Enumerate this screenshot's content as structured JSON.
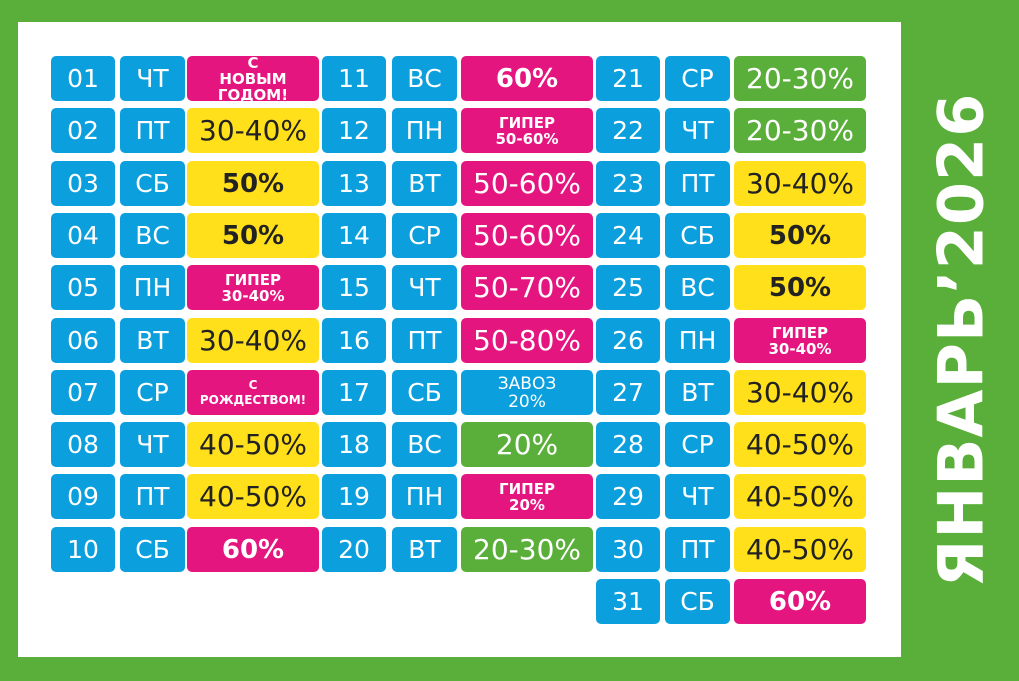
{
  "title": "ЯНВАРЬ’2026",
  "colors": {
    "blue": "#0c9fdd",
    "yellow": "#ffe01b",
    "pink": "#e5157f",
    "green": "#5aaf3a"
  },
  "rows": [
    {
      "day": "01",
      "weekday": "ЧТ",
      "label": "С НОВЫМ ГОДОМ!",
      "color": "pink",
      "style": "small"
    },
    {
      "day": "02",
      "weekday": "ПТ",
      "label": "30-40%",
      "color": "yellow",
      "style": "big"
    },
    {
      "day": "03",
      "weekday": "СБ",
      "label": "50%",
      "color": "yellow",
      "style": "bold"
    },
    {
      "day": "04",
      "weekday": "ВС",
      "label": "50%",
      "color": "yellow",
      "style": "bold"
    },
    {
      "day": "05",
      "weekday": "ПН",
      "label": "ГИПЕР 30-40%",
      "color": "pink",
      "style": "small"
    },
    {
      "day": "06",
      "weekday": "ВТ",
      "label": "30-40%",
      "color": "yellow",
      "style": "big"
    },
    {
      "day": "07",
      "weekday": "СР",
      "label": "С РОЖДЕСТВОМ!",
      "color": "pink",
      "style": "tiny"
    },
    {
      "day": "08",
      "weekday": "ЧТ",
      "label": "40-50%",
      "color": "yellow",
      "style": "big"
    },
    {
      "day": "09",
      "weekday": "ПТ",
      "label": "40-50%",
      "color": "yellow",
      "style": "big"
    },
    {
      "day": "10",
      "weekday": "СБ",
      "label": "60%",
      "color": "pink",
      "style": "bold"
    },
    {
      "day": "11",
      "weekday": "ВС",
      "label": "60%",
      "color": "pink",
      "style": "bold"
    },
    {
      "day": "12",
      "weekday": "ПН",
      "label": "ГИПЕР 50-60%",
      "color": "pink",
      "style": "small"
    },
    {
      "day": "13",
      "weekday": "ВТ",
      "label": "50-60%",
      "color": "pink",
      "style": "big"
    },
    {
      "day": "14",
      "weekday": "СР",
      "label": "50-60%",
      "color": "pink",
      "style": "big"
    },
    {
      "day": "15",
      "weekday": "ЧТ",
      "label": "50-70%",
      "color": "pink",
      "style": "big"
    },
    {
      "day": "16",
      "weekday": "ПТ",
      "label": "50-80%",
      "color": "pink",
      "style": "big"
    },
    {
      "day": "17",
      "weekday": "СБ",
      "label": "ЗАВОЗ 20%",
      "color": "blue",
      "style": "regsmall"
    },
    {
      "day": "18",
      "weekday": "ВС",
      "label": "20%",
      "color": "green",
      "style": "big"
    },
    {
      "day": "19",
      "weekday": "ПН",
      "label": "ГИПЕР 20%",
      "color": "pink",
      "style": "small"
    },
    {
      "day": "20",
      "weekday": "ВТ",
      "label": "20-30%",
      "color": "green",
      "style": "big"
    },
    {
      "day": "21",
      "weekday": "СР",
      "label": "20-30%",
      "color": "green",
      "style": "big"
    },
    {
      "day": "22",
      "weekday": "ЧТ",
      "label": "20-30%",
      "color": "green",
      "style": "big"
    },
    {
      "day": "23",
      "weekday": "ПТ",
      "label": "30-40%",
      "color": "yellow",
      "style": "big"
    },
    {
      "day": "24",
      "weekday": "СБ",
      "label": "50%",
      "color": "yellow",
      "style": "bold"
    },
    {
      "day": "25",
      "weekday": "ВС",
      "label": "50%",
      "color": "yellow",
      "style": "bold"
    },
    {
      "day": "26",
      "weekday": "ПН",
      "label": "ГИПЕР 30-40%",
      "color": "pink",
      "style": "small"
    },
    {
      "day": "27",
      "weekday": "ВТ",
      "label": "30-40%",
      "color": "yellow",
      "style": "big"
    },
    {
      "day": "28",
      "weekday": "СР",
      "label": "40-50%",
      "color": "yellow",
      "style": "big"
    },
    {
      "day": "29",
      "weekday": "ЧТ",
      "label": "40-50%",
      "color": "yellow",
      "style": "big"
    },
    {
      "day": "30",
      "weekday": "ПТ",
      "label": "40-50%",
      "color": "yellow",
      "style": "big"
    },
    {
      "day": "31",
      "weekday": "СБ",
      "label": "60%",
      "color": "pink",
      "style": "bold"
    }
  ]
}
